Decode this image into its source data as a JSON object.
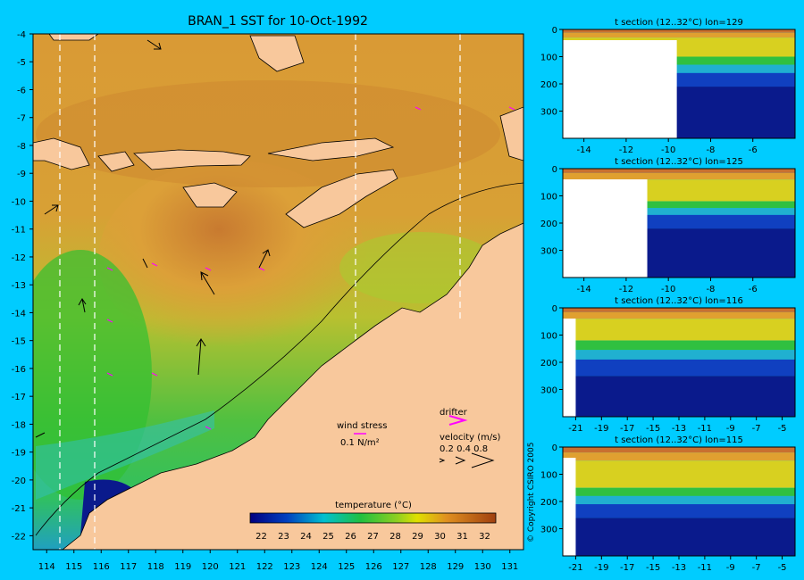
{
  "colors": {
    "background": "#00ccff",
    "land": "#f8c89c",
    "deep": "#0a1a8c",
    "warm": "#cc7030",
    "hot": "#a84a18",
    "green": "#22bb22",
    "cyan": "#22ccee",
    "magenta": "#ff00ff"
  },
  "map": {
    "title": "BRAN_1 SST for 10-Oct-1992",
    "x_ticks": [
      "114",
      "115",
      "116",
      "117",
      "118",
      "119",
      "120",
      "121",
      "122",
      "123",
      "124",
      "125",
      "126",
      "127",
      "128",
      "129",
      "130",
      "131"
    ],
    "y_ticks": [
      "-4",
      "-5",
      "-6",
      "-7",
      "-8",
      "-9",
      "-10",
      "-11",
      "-12",
      "-13",
      "-14",
      "-15",
      "-16",
      "-17",
      "-18",
      "-19",
      "-20",
      "-21",
      "-22"
    ],
    "section_lons": [
      114.5,
      115.8,
      125.4,
      129.2
    ],
    "wind_stress_label": "wind stress",
    "wind_stress_value": "0.1 N/m²",
    "drifter_label": "drifter",
    "velocity_label": "velocity (m/s)",
    "velocity_values": "0.2 0.4 0.8",
    "copyright": "© Copyright CSIRO 2005"
  },
  "colorbar": {
    "title": "temperature (°C)",
    "ticks": [
      "22",
      "23",
      "24",
      "25",
      "26",
      "27",
      "28",
      "29",
      "30",
      "31",
      "32"
    ]
  },
  "chart_data": [
    {
      "type": "heatmap",
      "title": "BRAN_1 SST for 10-Oct-1992",
      "xlabel": "",
      "ylabel": "",
      "xlim": [
        113.5,
        131.5
      ],
      "ylim": [
        -22.5,
        -4
      ],
      "colorbar_label": "temperature (°C)",
      "colorbar_range": [
        21.5,
        32.5
      ]
    },
    {
      "type": "heatmap",
      "title": "t section (12..32°C) lon=129",
      "xlim": [
        -15,
        -4
      ],
      "ylim": [
        0,
        400
      ],
      "x_ticks": [
        "-14",
        "-12",
        "-10",
        "-8",
        "-6"
      ],
      "y_ticks": [
        "0",
        "100",
        "200",
        "300"
      ],
      "land_until_x": -9.6,
      "isotherm_depths": {
        "29C": 30,
        "26C": 100,
        "22C": 160,
        "18C": 210
      }
    },
    {
      "type": "heatmap",
      "title": "t section (12..32°C) lon=125",
      "xlim": [
        -15,
        -4
      ],
      "ylim": [
        0,
        400
      ],
      "x_ticks": [
        "-14",
        "-12",
        "-10",
        "-8",
        "-6"
      ],
      "y_ticks": [
        "0",
        "100",
        "200",
        "300"
      ],
      "land_until_x": -11,
      "isotherm_depths": {
        "29C": 40,
        "26C": 120,
        "22C": 170,
        "18C": 220
      }
    },
    {
      "type": "heatmap",
      "title": "t section (12..32°C) lon=116",
      "xlim": [
        -22,
        -4
      ],
      "ylim": [
        0,
        400
      ],
      "x_ticks": [
        "-21",
        "-19",
        "-17",
        "-15",
        "-13",
        "-11",
        "-9",
        "-7",
        "-5"
      ],
      "y_ticks": [
        "0",
        "100",
        "200",
        "300"
      ],
      "land_until_x": -21,
      "isotherm_depths": {
        "29C": 40,
        "26C": 120,
        "22C": 190,
        "18C": 250
      }
    },
    {
      "type": "heatmap",
      "title": "t section (12..32°C) lon=115",
      "xlim": [
        -22,
        -4
      ],
      "ylim": [
        0,
        400
      ],
      "x_ticks": [
        "-21",
        "-19",
        "-17",
        "-15",
        "-13",
        "-11",
        "-9",
        "-7",
        "-5"
      ],
      "y_ticks": [
        "0",
        "100",
        "200",
        "300"
      ],
      "land_until_x": -21,
      "isotherm_depths": {
        "29C": 50,
        "26C": 150,
        "22C": 210,
        "18C": 260
      }
    }
  ]
}
